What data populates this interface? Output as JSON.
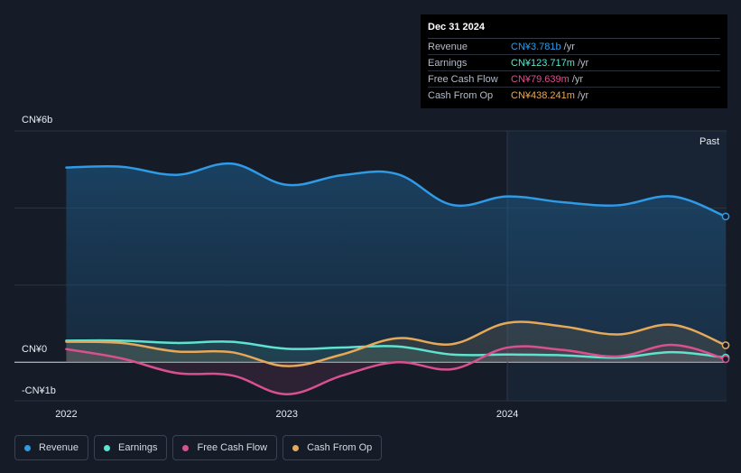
{
  "tooltip": {
    "date": "Dec 31 2024",
    "rows": [
      {
        "label": "Revenue",
        "value": "CN¥3.781b",
        "unit": "/yr",
        "color": "#2f9ae6"
      },
      {
        "label": "Earnings",
        "value": "CN¥123.717m",
        "unit": "/yr",
        "color": "#5fe3d0"
      },
      {
        "label": "Free Cash Flow",
        "value": "CN¥79.639m",
        "unit": "/yr",
        "color": "#d9508f"
      },
      {
        "label": "Cash From Op",
        "value": "CN¥438.241m",
        "unit": "/yr",
        "color": "#e6a95a"
      }
    ]
  },
  "past_label": "Past",
  "legend": [
    {
      "label": "Revenue",
      "color": "#2f9ae6"
    },
    {
      "label": "Earnings",
      "color": "#5fe3d0"
    },
    {
      "label": "Free Cash Flow",
      "color": "#d9508f"
    },
    {
      "label": "Cash From Op",
      "color": "#e6a95a"
    }
  ],
  "chart_data": {
    "type": "line",
    "title": "",
    "ylabel": "",
    "xlabel": "",
    "y_tick_labels": {
      "top": "CN¥6b",
      "zero": "CN¥0",
      "bottom": "-CN¥1b"
    },
    "ylim": [
      -1,
      6
    ],
    "xlim": [
      2021.9,
      2024.99
    ],
    "x_ticks": [
      2022,
      2023,
      2024
    ],
    "x_tick_labels": [
      "2022",
      "2023",
      "2024"
    ],
    "highlight_start": 2024.0,
    "series": [
      {
        "name": "Revenue",
        "color": "#2f9ae6",
        "x": [
          2022.0,
          2022.25,
          2022.5,
          2022.75,
          2023.0,
          2023.25,
          2023.5,
          2023.75,
          2024.0,
          2024.25,
          2024.5,
          2024.75,
          2024.99
        ],
        "y": [
          5.05,
          5.07,
          4.86,
          5.15,
          4.6,
          4.85,
          4.88,
          4.08,
          4.3,
          4.15,
          4.07,
          4.3,
          3.78
        ]
      },
      {
        "name": "Earnings",
        "color": "#5fe3d0",
        "x": [
          2022.0,
          2022.25,
          2022.5,
          2022.75,
          2023.0,
          2023.25,
          2023.5,
          2023.75,
          2024.0,
          2024.25,
          2024.5,
          2024.75,
          2024.99
        ],
        "y": [
          0.56,
          0.56,
          0.5,
          0.53,
          0.35,
          0.38,
          0.41,
          0.2,
          0.2,
          0.18,
          0.12,
          0.26,
          0.12
        ]
      },
      {
        "name": "Free Cash Flow",
        "color": "#d9508f",
        "x": [
          2022.0,
          2022.25,
          2022.5,
          2022.75,
          2023.0,
          2023.25,
          2023.5,
          2023.75,
          2024.0,
          2024.25,
          2024.5,
          2024.75,
          2024.99
        ],
        "y": [
          0.34,
          0.1,
          -0.28,
          -0.34,
          -0.83,
          -0.35,
          0.0,
          -0.18,
          0.38,
          0.32,
          0.15,
          0.45,
          0.08
        ]
      },
      {
        "name": "Cash From Op",
        "color": "#e6a95a",
        "x": [
          2022.0,
          2022.25,
          2022.5,
          2022.75,
          2023.0,
          2023.25,
          2023.5,
          2023.75,
          2024.0,
          2024.25,
          2024.5,
          2024.75,
          2024.99
        ],
        "y": [
          0.53,
          0.5,
          0.28,
          0.26,
          -0.1,
          0.2,
          0.62,
          0.47,
          1.02,
          0.93,
          0.72,
          0.97,
          0.44
        ]
      }
    ]
  }
}
